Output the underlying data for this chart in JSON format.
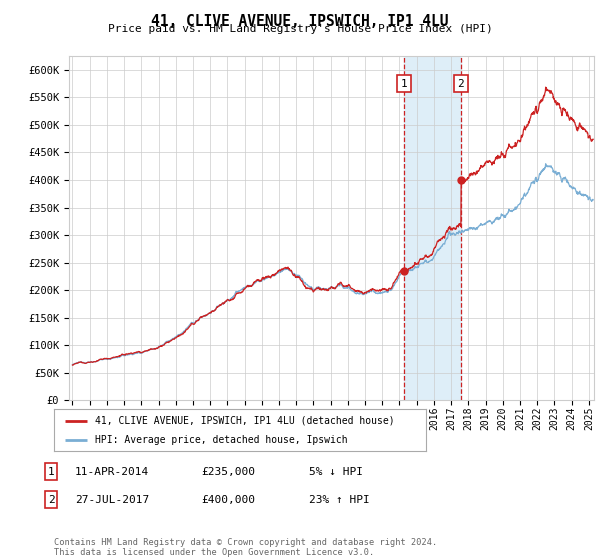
{
  "title": "41, CLIVE AVENUE, IPSWICH, IP1 4LU",
  "subtitle": "Price paid vs. HM Land Registry's House Price Index (HPI)",
  "ylabel_ticks": [
    "£0",
    "£50K",
    "£100K",
    "£150K",
    "£200K",
    "£250K",
    "£300K",
    "£350K",
    "£400K",
    "£450K",
    "£500K",
    "£550K",
    "£600K"
  ],
  "ylim": [
    0,
    620000
  ],
  "xlim_start": 1994.8,
  "xlim_end": 2025.3,
  "sale1_date": 2014.27,
  "sale1_price": 235000,
  "sale2_date": 2017.57,
  "sale2_price": 400000,
  "hpi_color": "#7aaed4",
  "property_color": "#cc2222",
  "shade_color": "#deeef8",
  "annotation_box_color": "#cc2222",
  "legend_label_property": "41, CLIVE AVENUE, IPSWICH, IP1 4LU (detached house)",
  "legend_label_hpi": "HPI: Average price, detached house, Ipswich",
  "table_rows": [
    {
      "num": "1",
      "date": "11-APR-2014",
      "price": "£235,000",
      "pct": "5% ↓ HPI"
    },
    {
      "num": "2",
      "date": "27-JUL-2017",
      "price": "£400,000",
      "pct": "23% ↑ HPI"
    }
  ],
  "footer": "Contains HM Land Registry data © Crown copyright and database right 2024.\nThis data is licensed under the Open Government Licence v3.0.",
  "background_color": "#ffffff",
  "grid_color": "#cccccc"
}
